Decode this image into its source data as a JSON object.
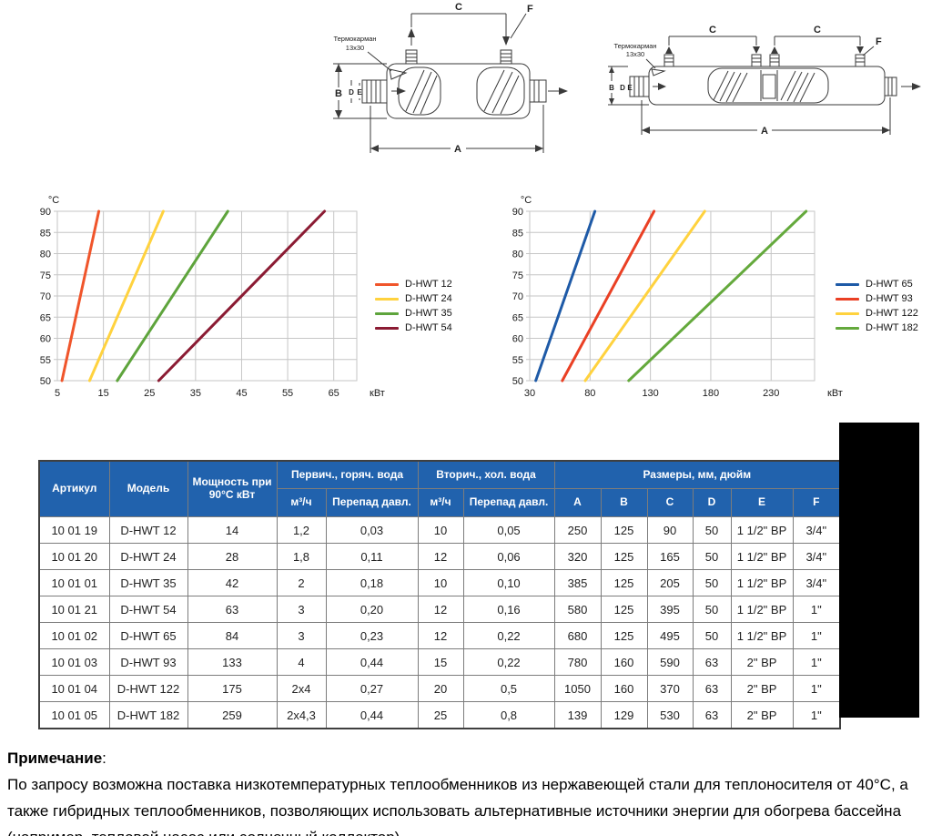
{
  "diagram_labels": {
    "thermowell": "Термокарман",
    "thermowell_size": "13х30",
    "a": "A",
    "b": "B",
    "c": "C",
    "d": "D",
    "e": "E",
    "f": "F"
  },
  "chart_data": [
    {
      "type": "line",
      "title": "",
      "xlabel": "кВт",
      "ylabel": "°С",
      "xlim": [
        5,
        70
      ],
      "ylim": [
        50,
        90
      ],
      "xticks": [
        5,
        15,
        25,
        35,
        45,
        55,
        65
      ],
      "yticks": [
        50,
        55,
        60,
        65,
        70,
        75,
        80,
        85,
        90
      ],
      "grid": true,
      "legend_position": "right",
      "series": [
        {
          "name": "D-HWT 12",
          "color": "#F0552B",
          "points": [
            [
              6,
              50
            ],
            [
              14,
              90
            ]
          ]
        },
        {
          "name": "D-HWT 24",
          "color": "#FFD23E",
          "points": [
            [
              12,
              50
            ],
            [
              28,
              90
            ]
          ]
        },
        {
          "name": "D-HWT 35",
          "color": "#5EA43C",
          "points": [
            [
              18,
              50
            ],
            [
              42,
              90
            ]
          ]
        },
        {
          "name": "D-HWT 54",
          "color": "#8B1B33",
          "points": [
            [
              27,
              50
            ],
            [
              63,
              90
            ]
          ]
        }
      ]
    },
    {
      "type": "line",
      "title": "",
      "xlabel": "кВт",
      "ylabel": "°С",
      "xlim": [
        30,
        266
      ],
      "ylim": [
        50,
        90
      ],
      "xticks": [
        30,
        80,
        130,
        180,
        230
      ],
      "yticks": [
        50,
        55,
        60,
        65,
        70,
        75,
        80,
        85,
        90
      ],
      "grid": true,
      "legend_position": "right",
      "series": [
        {
          "name": "D-HWT 65",
          "color": "#1E5AA7",
          "points": [
            [
              35,
              50
            ],
            [
              84,
              90
            ]
          ]
        },
        {
          "name": "D-HWT 93",
          "color": "#EA4024",
          "points": [
            [
              57,
              50
            ],
            [
              133,
              90
            ]
          ]
        },
        {
          "name": "D-HWT 122",
          "color": "#FFD23E",
          "points": [
            [
              76,
              50
            ],
            [
              175,
              90
            ]
          ]
        },
        {
          "name": "D-HWT 182",
          "color": "#64A93C",
          "points": [
            [
              112,
              50
            ],
            [
              259,
              90
            ]
          ]
        }
      ]
    }
  ],
  "table": {
    "head": {
      "artikul": "Артикул",
      "model": "Модель",
      "power": "Мощность при 90°С кВт",
      "primary_group": "Первич., горяч. вода",
      "secondary_group": "Вторич., хол. вода",
      "dims_group": "Размеры, мм, дюйм",
      "flow": "м³/ч",
      "pressure_drop": "Перепад давл.",
      "dim_cols": [
        "A",
        "B",
        "C",
        "D",
        "E",
        "F"
      ]
    },
    "rows": [
      [
        "10 01 19",
        "D-HWT 12",
        "14",
        "1,2",
        "0,03",
        "10",
        "0,05",
        "250",
        "125",
        "90",
        "50",
        "1 1/2\" ВР",
        "3/4\""
      ],
      [
        "10 01 20",
        "D-HWT 24",
        "28",
        "1,8",
        "0,11",
        "12",
        "0,06",
        "320",
        "125",
        "165",
        "50",
        "1 1/2\" ВР",
        "3/4\""
      ],
      [
        "10 01 01",
        "D-HWT 35",
        "42",
        "2",
        "0,18",
        "10",
        "0,10",
        "385",
        "125",
        "205",
        "50",
        "1 1/2\" ВР",
        "3/4\""
      ],
      [
        "10 01 21",
        "D-HWT 54",
        "63",
        "3",
        "0,20",
        "12",
        "0,16",
        "580",
        "125",
        "395",
        "50",
        "1 1/2\" ВР",
        "1\""
      ],
      [
        "10 01 02",
        "D-HWT 65",
        "84",
        "3",
        "0,23",
        "12",
        "0,22",
        "680",
        "125",
        "495",
        "50",
        "1 1/2\" ВР",
        "1\""
      ],
      [
        "10 01 03",
        "D-HWT 93",
        "133",
        "4",
        "0,44",
        "15",
        "0,22",
        "780",
        "160",
        "590",
        "63",
        "2\" ВР",
        "1\""
      ],
      [
        "10 01 04",
        "D-HWT 122",
        "175",
        "2x4",
        "0,27",
        "20",
        "0,5",
        "1050",
        "160",
        "370",
        "63",
        "2\" ВР",
        "1\""
      ],
      [
        "10 01 05",
        "D-HWT 182",
        "259",
        "2x4,3",
        "0,44",
        "25",
        "0,8",
        "139",
        "129",
        "530",
        "63",
        "2\" ВР",
        "1\""
      ]
    ]
  },
  "note": {
    "heading": "Примечание",
    "colon": ":",
    "text": "По запросу возможна поставка низкотемпературных теплообменников из нержавеющей стали для теплоносителя от 40°С, а также гибридных теплообменников, позволяющих использовать альтернативные источники энергии для обогрева бассейна (например, тепловой насос или солнечный коллектор)."
  },
  "colors": {
    "table_header_blue": "#2162AD",
    "grid_gray": "#C6C6C6",
    "redacted_black": "#000000"
  }
}
